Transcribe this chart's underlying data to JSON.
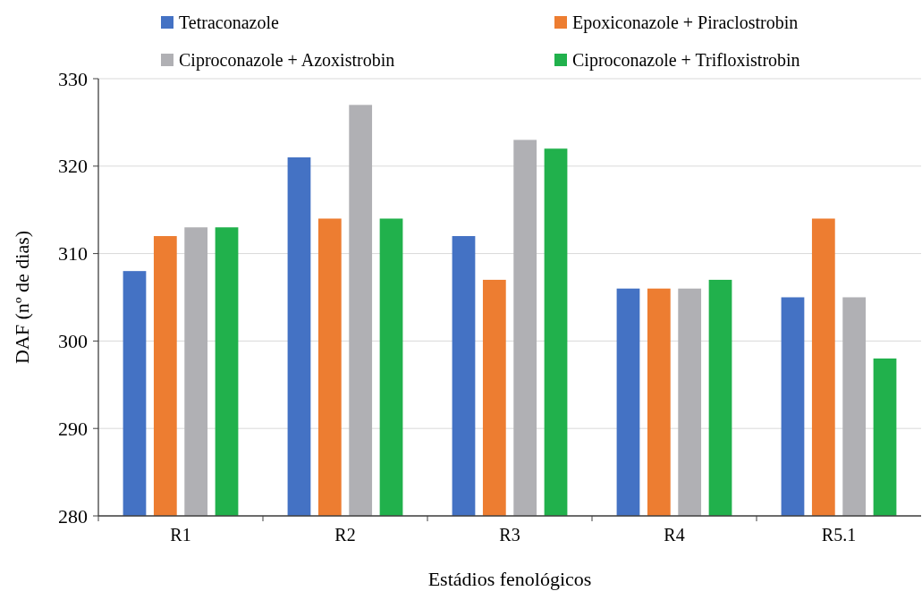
{
  "chart_data": {
    "type": "bar",
    "xlabel": "Estádios fenológicos",
    "ylabel": "DAF (nº de dias)",
    "categories": [
      "R1",
      "R2",
      "R3",
      "R4",
      "R5.1"
    ],
    "series": [
      {
        "name": "Tetraconazole",
        "color": "#4472c4",
        "values": [
          308,
          321,
          312,
          306,
          305
        ]
      },
      {
        "name": "Epoxiconazole + Piraclostrobin",
        "color": "#ed7d31",
        "values": [
          312,
          314,
          307,
          306,
          314
        ]
      },
      {
        "name": "Ciproconazole + Azoxistrobin",
        "color": "#b0b0b4",
        "values": [
          313,
          327,
          323,
          306,
          305
        ]
      },
      {
        "name": "Ciproconazole + Trifloxistrobin",
        "color": "#21b14c",
        "values": [
          313,
          314,
          322,
          307,
          298
        ]
      }
    ],
    "ylim": [
      280,
      330
    ],
    "yticks": [
      280,
      290,
      300,
      310,
      320,
      330
    ],
    "grid": "y",
    "legend": "top"
  }
}
